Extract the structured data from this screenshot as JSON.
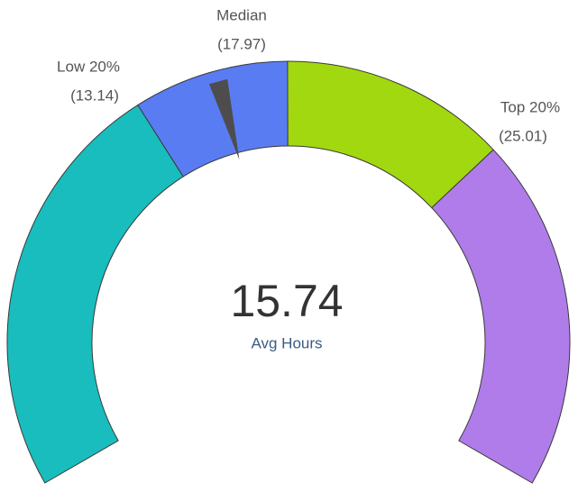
{
  "chart_data": {
    "type": "gauge",
    "value": 15.74,
    "value_name": "Avg Hours",
    "ylim": [
      0,
      36
    ],
    "thresholds": [
      {
        "name": "Low 20%",
        "value": 13.14,
        "label": "(13.14)"
      },
      {
        "name": "Median",
        "value": 17.97,
        "label": "(17.97)"
      },
      {
        "name": "Top 20%",
        "value": 25.01,
        "label": "(25.01)"
      }
    ],
    "band_colors": [
      "#19bdbd",
      "#5a7cf3",
      "#a2d80f",
      "#b07ce9"
    ],
    "needle_color": "#4d4d4d"
  }
}
